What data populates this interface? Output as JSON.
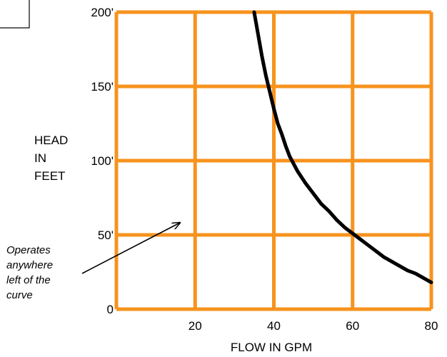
{
  "chart_data": {
    "type": "line",
    "title": "",
    "xlabel": "FLOW IN GPM",
    "ylabel_lines": [
      "HEAD",
      "IN",
      "FEET"
    ],
    "xlim": [
      0,
      80
    ],
    "ylim": [
      0,
      200
    ],
    "x_ticks": [
      {
        "value": 20,
        "label": "20"
      },
      {
        "value": 40,
        "label": "40"
      },
      {
        "value": 60,
        "label": "60"
      },
      {
        "value": 80,
        "label": "80"
      }
    ],
    "y_ticks": [
      {
        "value": 0,
        "label": "0"
      },
      {
        "value": 50,
        "label": "50'"
      },
      {
        "value": 100,
        "label": "100'"
      },
      {
        "value": 150,
        "label": "150'"
      },
      {
        "value": 200,
        "label": "200'"
      }
    ],
    "grid": true,
    "grid_color": "#f7931e",
    "series": [
      {
        "color": "#000000",
        "x": [
          35,
          36,
          37,
          38,
          39,
          40,
          41,
          42,
          43,
          44,
          46,
          48,
          50,
          52,
          54,
          56,
          58,
          60,
          62,
          64,
          66,
          68,
          70,
          72,
          74,
          76,
          78,
          80
        ],
        "y": [
          200,
          185,
          170,
          157,
          146,
          135,
          125,
          118,
          110,
          103,
          93,
          85,
          78,
          71,
          66,
          60,
          55,
          51,
          47,
          43,
          39,
          35,
          32,
          29,
          26,
          24,
          21,
          18
        ]
      }
    ],
    "annotations": [
      {
        "lines": [
          "Operates",
          "anywhere",
          "left of the",
          "curve"
        ],
        "arrow_to": {
          "x": 16,
          "y": 58
        }
      }
    ]
  }
}
